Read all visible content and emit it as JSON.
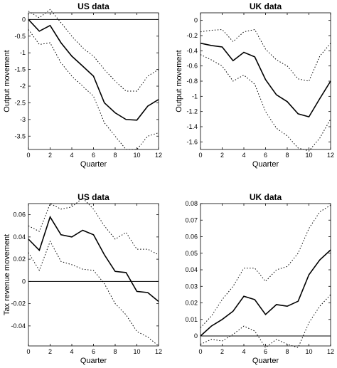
{
  "chart_data": [
    {
      "type": "line",
      "title": "US data",
      "xlabel": "Quarter",
      "ylabel": "Output movement",
      "xlim": [
        0,
        12
      ],
      "ylim": [
        -3.9,
        0.2
      ],
      "xticks": [
        0,
        2,
        4,
        6,
        8,
        10,
        12
      ],
      "yticks": [
        0,
        -0.5,
        -1,
        -1.5,
        -2,
        -2.5,
        -3,
        -3.5
      ],
      "x": [
        0,
        1,
        2,
        3,
        4,
        5,
        6,
        7,
        8,
        9,
        10,
        11,
        12
      ],
      "zero_line": true,
      "series": [
        {
          "role": "estimate",
          "values": [
            0,
            -0.35,
            -0.18,
            -0.7,
            -1.1,
            -1.4,
            -1.7,
            -2.5,
            -2.8,
            -3.0,
            -3.02,
            -2.6,
            -2.4
          ]
        },
        {
          "role": "upper",
          "values": [
            0.25,
            0.05,
            0.3,
            -0.1,
            -0.5,
            -0.85,
            -1.1,
            -1.5,
            -1.85,
            -2.15,
            -2.15,
            -1.7,
            -1.5
          ]
        },
        {
          "role": "lower",
          "values": [
            -0.3,
            -0.75,
            -0.7,
            -1.3,
            -1.7,
            -2.0,
            -2.3,
            -3.1,
            -3.5,
            -3.9,
            -3.9,
            -3.5,
            -3.4
          ]
        }
      ]
    },
    {
      "type": "line",
      "title": "UK data",
      "xlabel": "Quarter",
      "ylabel": "Output movement",
      "xlim": [
        0,
        12
      ],
      "ylim": [
        -1.7,
        0.1
      ],
      "xticks": [
        0,
        2,
        4,
        6,
        8,
        10,
        12
      ],
      "yticks": [
        0,
        -0.2,
        -0.4,
        -0.6,
        -0.8,
        -1,
        -1.2,
        -1.4,
        -1.6
      ],
      "x": [
        0,
        1,
        2,
        3,
        4,
        5,
        6,
        7,
        8,
        9,
        10,
        11,
        12
      ],
      "zero_line": false,
      "series": [
        {
          "role": "estimate",
          "values": [
            -0.3,
            -0.33,
            -0.35,
            -0.53,
            -0.42,
            -0.48,
            -0.78,
            -0.98,
            -1.07,
            -1.23,
            -1.27,
            -1.03,
            -0.8
          ]
        },
        {
          "role": "upper",
          "values": [
            -0.15,
            -0.13,
            -0.12,
            -0.28,
            -0.15,
            -0.12,
            -0.38,
            -0.52,
            -0.6,
            -0.77,
            -0.8,
            -0.47,
            -0.3
          ]
        },
        {
          "role": "lower",
          "values": [
            -0.45,
            -0.52,
            -0.6,
            -0.8,
            -0.72,
            -0.84,
            -1.2,
            -1.42,
            -1.52,
            -1.68,
            -1.72,
            -1.55,
            -1.3
          ]
        }
      ]
    },
    {
      "type": "line",
      "title": "US data",
      "xlabel": "Quarter",
      "ylabel": "Tax revenue movement",
      "xlim": [
        0,
        12
      ],
      "ylim": [
        -0.058,
        0.07
      ],
      "xticks": [
        0,
        2,
        4,
        6,
        8,
        10,
        12
      ],
      "yticks": [
        0.06,
        0.04,
        0.02,
        0,
        -0.02,
        -0.04
      ],
      "x": [
        0,
        1,
        2,
        3,
        4,
        5,
        6,
        7,
        8,
        9,
        10,
        11,
        12
      ],
      "zero_line": true,
      "series": [
        {
          "role": "estimate",
          "values": [
            0.038,
            0.028,
            0.058,
            0.042,
            0.04,
            0.046,
            0.042,
            0.024,
            0.009,
            0.008,
            -0.009,
            -0.01,
            -0.018
          ]
        },
        {
          "role": "upper",
          "values": [
            0.05,
            0.045,
            0.07,
            0.065,
            0.067,
            0.075,
            0.065,
            0.05,
            0.038,
            0.044,
            0.029,
            0.029,
            0.024
          ]
        },
        {
          "role": "lower",
          "values": [
            0.026,
            0.01,
            0.036,
            0.018,
            0.015,
            0.011,
            0.01,
            -0.002,
            -0.02,
            -0.03,
            -0.045,
            -0.05,
            -0.058
          ]
        }
      ]
    },
    {
      "type": "line",
      "title": "UK data",
      "xlabel": "Quarter",
      "ylabel": "",
      "xlim": [
        0,
        12
      ],
      "ylim": [
        -0.006,
        0.08
      ],
      "xticks": [
        0,
        2,
        4,
        6,
        8,
        10,
        12
      ],
      "yticks": [
        0.08,
        0.07,
        0.06,
        0.05,
        0.04,
        0.03,
        0.02,
        0.01,
        0
      ],
      "x": [
        0,
        1,
        2,
        3,
        4,
        5,
        6,
        7,
        8,
        9,
        10,
        11,
        12
      ],
      "zero_line": true,
      "series": [
        {
          "role": "estimate",
          "values": [
            0,
            0.006,
            0.01,
            0.015,
            0.024,
            0.022,
            0.013,
            0.019,
            0.018,
            0.021,
            0.037,
            0.046,
            0.052
          ]
        },
        {
          "role": "upper",
          "values": [
            0.005,
            0.012,
            0.022,
            0.03,
            0.041,
            0.041,
            0.033,
            0.04,
            0.042,
            0.05,
            0.065,
            0.075,
            0.079
          ]
        },
        {
          "role": "lower",
          "values": [
            -0.005,
            -0.002,
            -0.003,
            0.001,
            0.006,
            0.003,
            -0.007,
            -0.002,
            -0.005,
            -0.007,
            0.008,
            0.018,
            0.025
          ]
        }
      ]
    }
  ]
}
